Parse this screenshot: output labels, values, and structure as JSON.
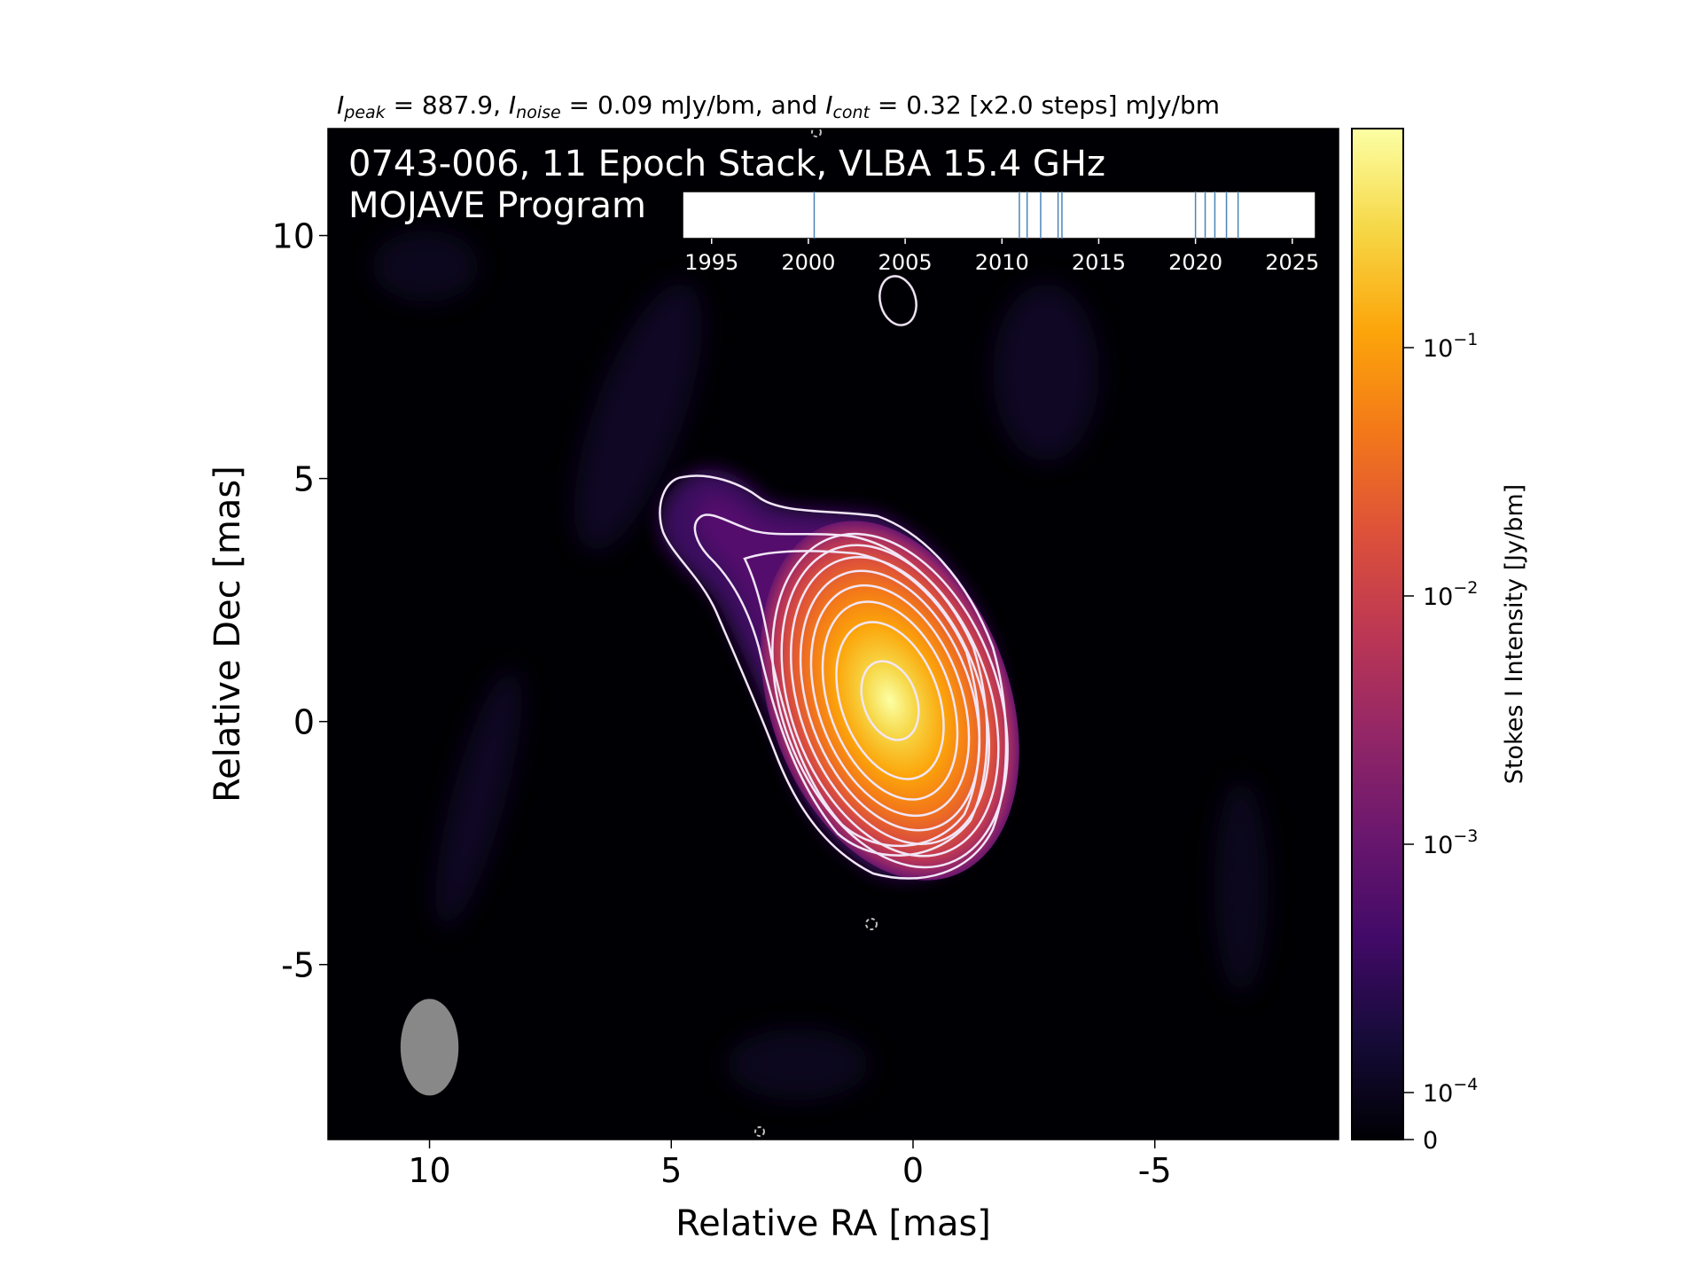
{
  "chart_data": {
    "type": "heatmap",
    "title": {
      "parts": [
        {
          "text": "I",
          "italic": true
        },
        {
          "text": "peak",
          "italic": true,
          "sub": true
        },
        {
          "text": " = 887.9, "
        },
        {
          "text": "I",
          "italic": true
        },
        {
          "text": "noise",
          "italic": true,
          "sub": true
        },
        {
          "text": " = 0.09 mJy/bm, and "
        },
        {
          "text": "I",
          "italic": true
        },
        {
          "text": "cont",
          "italic": true,
          "sub": true
        },
        {
          "text": " = 0.32 [x2.0 steps] mJy/bm"
        }
      ]
    },
    "source_label": "0743-006, 11 Epoch Stack, VLBA 15.4 GHz",
    "program_label": "MOJAVE Program",
    "xlabel": "Relative RA [mas]",
    "ylabel": "Relative Dec [mas]",
    "xlim": [
      12.1,
      -8.8
    ],
    "ylim": [
      -8.6,
      12.2
    ],
    "x_ticks": [
      10,
      5,
      0,
      -5
    ],
    "x_tick_labels": [
      "10",
      "5",
      "0",
      "-5"
    ],
    "y_ticks": [
      10,
      5,
      0,
      -5
    ],
    "y_tick_labels": [
      "10",
      "5",
      "0",
      "-5"
    ],
    "core": {
      "ra": -0.1,
      "dec": 0.2
    },
    "beam": {
      "ra": 10.0,
      "dec": -6.7,
      "major": 2.0,
      "minor": 1.2,
      "pa_deg": 0
    },
    "contour_levels_mJy": [
      0.32,
      0.64,
      1.28,
      2.56,
      5.12,
      10.24,
      20.48,
      40.96,
      81.92,
      163.84,
      327.68,
      655.36
    ],
    "epochs": [
      2000.3,
      2010.9,
      2011.3,
      2012.0,
      2012.9,
      2013.1,
      2020.0,
      2020.5,
      2021.0,
      2021.6,
      2022.2
    ],
    "epoch_axis": {
      "xlim": [
        1993.5,
        2026.2
      ],
      "ticks": [
        1995,
        2000,
        2005,
        2010,
        2015,
        2020,
        2025
      ]
    },
    "colorbar": {
      "label": "Stokes I Intensity [Jy/bm]",
      "colormap": "inferno",
      "ticks": [
        {
          "value": 0.1,
          "base": "10",
          "exp": "−1"
        },
        {
          "value": 0.01,
          "base": "10",
          "exp": "−2"
        },
        {
          "value": 0.001,
          "base": "10",
          "exp": "−3"
        },
        {
          "value": 0.0001,
          "base": "10",
          "exp": "−4"
        },
        {
          "value": 0,
          "base": "0",
          "exp": ""
        }
      ],
      "scale": "log"
    },
    "colors": {
      "background": "#000004",
      "contour": "#f2e6f7",
      "beam": "#888888",
      "epoch_line": "#4c84b8",
      "text_on_image": "#ffffff"
    }
  }
}
